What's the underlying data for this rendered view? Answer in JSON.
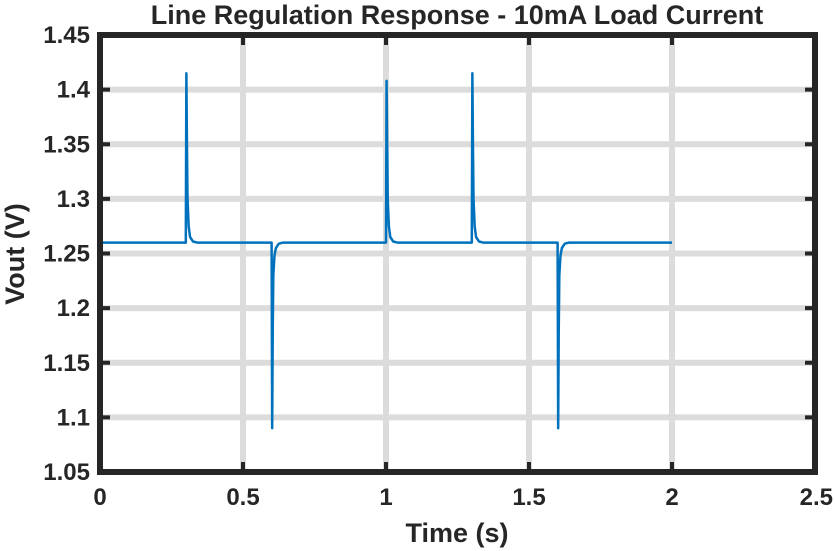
{
  "chart_data": {
    "type": "line",
    "title": "Line Regulation Response - 10mA Load Current",
    "xlabel": "Time (s)",
    "ylabel": "Vout (V)",
    "xlim": [
      0,
      2.5
    ],
    "ylim": [
      1.05,
      1.45
    ],
    "x_ticks": [
      "0",
      "0.5",
      "1",
      "1.5",
      "2",
      "2.5"
    ],
    "y_ticks": [
      "1.05",
      "1.1",
      "1.15",
      "1.2",
      "1.25",
      "1.3",
      "1.35",
      "1.4",
      "1.45"
    ],
    "grid": true,
    "series": [
      {
        "color": "#0072BD",
        "points": [
          [
            0,
            1.26
          ],
          [
            0.3,
            1.26
          ],
          [
            0.302,
            1.415
          ],
          [
            0.304,
            1.35
          ],
          [
            0.306,
            1.3
          ],
          [
            0.31,
            1.275
          ],
          [
            0.315,
            1.265
          ],
          [
            0.325,
            1.261
          ],
          [
            0.34,
            1.26
          ],
          [
            0.6,
            1.26
          ],
          [
            0.602,
            1.09
          ],
          [
            0.604,
            1.18
          ],
          [
            0.606,
            1.23
          ],
          [
            0.61,
            1.248
          ],
          [
            0.615,
            1.255
          ],
          [
            0.625,
            1.259
          ],
          [
            0.64,
            1.26
          ],
          [
            1.0,
            1.26
          ],
          [
            1.002,
            1.408
          ],
          [
            1.004,
            1.35
          ],
          [
            1.006,
            1.3
          ],
          [
            1.01,
            1.275
          ],
          [
            1.015,
            1.265
          ],
          [
            1.025,
            1.261
          ],
          [
            1.04,
            1.26
          ],
          [
            1.3,
            1.26
          ],
          [
            1.302,
            1.415
          ],
          [
            1.304,
            1.35
          ],
          [
            1.306,
            1.3
          ],
          [
            1.31,
            1.275
          ],
          [
            1.315,
            1.265
          ],
          [
            1.325,
            1.261
          ],
          [
            1.34,
            1.26
          ],
          [
            1.6,
            1.26
          ],
          [
            1.602,
            1.09
          ],
          [
            1.604,
            1.18
          ],
          [
            1.606,
            1.23
          ],
          [
            1.61,
            1.248
          ],
          [
            1.615,
            1.255
          ],
          [
            1.625,
            1.259
          ],
          [
            1.64,
            1.26
          ],
          [
            2.0,
            1.26
          ]
        ]
      }
    ]
  }
}
